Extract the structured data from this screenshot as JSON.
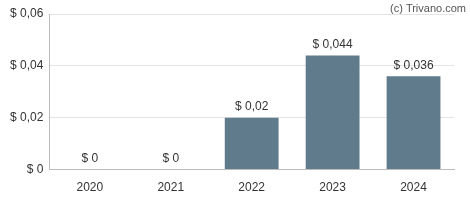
{
  "chart_data": {
    "type": "bar",
    "categories": [
      "2020",
      "2021",
      "2022",
      "2023",
      "2024"
    ],
    "values": [
      0,
      0,
      0.02,
      0.044,
      0.036
    ],
    "value_labels": [
      "$ 0",
      "$ 0",
      "$ 0,02",
      "$ 0,044",
      "$ 0,036"
    ],
    "color": "#5f7b8c",
    "ylim": [
      0,
      0.06
    ],
    "yticks": [
      {
        "value": 0,
        "label": "$ 0"
      },
      {
        "value": 0.02,
        "label": "$ 0,02"
      },
      {
        "value": 0.04,
        "label": "$ 0,04"
      },
      {
        "value": 0.06,
        "label": "$ 0,06"
      }
    ],
    "grid": true,
    "data_labels": true,
    "annotations": [
      "(c) Trivano.com"
    ]
  }
}
